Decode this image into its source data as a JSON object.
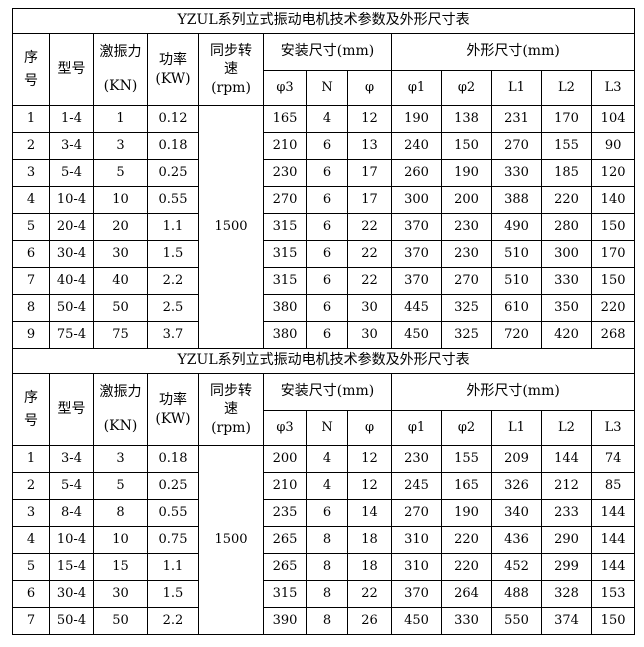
{
  "page": {
    "background": "#ffffff",
    "border_color": "#000000",
    "text_color": "#000000"
  },
  "tables": [
    {
      "title": "YZUL系列立式振动电机技术参数及外形尺寸表",
      "headers": {
        "seq": "序号",
        "model": "型号",
        "excitation_label": "激振力",
        "excitation_unit": "(KN)",
        "power_label": "功率",
        "power_unit": "(KW)",
        "sync_speed": "同步转速(rpm)",
        "install_group": "安装尺寸(mm)",
        "outline_group": "外形尺寸(mm)",
        "sub": [
          "φ3",
          "N",
          "φ",
          "φ1",
          "φ2",
          "L1",
          "L2",
          "L3"
        ]
      },
      "sync_speed_value": "1500",
      "rows": [
        [
          "1",
          "1-4",
          "1",
          "0.12",
          "165",
          "4",
          "12",
          "190",
          "138",
          "231",
          "170",
          "104"
        ],
        [
          "2",
          "3-4",
          "3",
          "0.18",
          "210",
          "6",
          "13",
          "240",
          "150",
          "270",
          "155",
          "90"
        ],
        [
          "3",
          "5-4",
          "5",
          "0.25",
          "230",
          "6",
          "17",
          "260",
          "190",
          "330",
          "185",
          "120"
        ],
        [
          "4",
          "10-4",
          "10",
          "0.55",
          "270",
          "6",
          "17",
          "300",
          "200",
          "388",
          "220",
          "140"
        ],
        [
          "5",
          "20-4",
          "20",
          "1.1",
          "315",
          "6",
          "22",
          "370",
          "230",
          "490",
          "280",
          "150"
        ],
        [
          "6",
          "30-4",
          "30",
          "1.5",
          "315",
          "6",
          "22",
          "370",
          "230",
          "510",
          "300",
          "170"
        ],
        [
          "7",
          "40-4",
          "40",
          "2.2",
          "315",
          "6",
          "22",
          "370",
          "270",
          "510",
          "330",
          "150"
        ],
        [
          "8",
          "50-4",
          "50",
          "2.5",
          "380",
          "6",
          "30",
          "445",
          "325",
          "610",
          "350",
          "220"
        ],
        [
          "9",
          "75-4",
          "75",
          "3.7",
          "380",
          "6",
          "30",
          "450",
          "325",
          "720",
          "420",
          "268"
        ]
      ]
    },
    {
      "title": "YZUL系列立式振动电机技术参数及外形尺寸表",
      "headers": {
        "seq": "序号",
        "model": "型号",
        "excitation_label": "激振力",
        "excitation_unit": "(KN)",
        "power_label": "功率",
        "power_unit": "(KW)",
        "sync_speed": "同步转速(rpm)",
        "install_group": "安装尺寸(mm)",
        "outline_group": "外形尺寸(mm)",
        "sub": [
          "φ3",
          "N",
          "φ",
          "φ1",
          "φ2",
          "L1",
          "L2",
          "L3"
        ]
      },
      "sync_speed_value": "1500",
      "rows": [
        [
          "1",
          "3-4",
          "3",
          "0.18",
          "200",
          "4",
          "12",
          "230",
          "155",
          "209",
          "144",
          "74"
        ],
        [
          "2",
          "5-4",
          "5",
          "0.25",
          "210",
          "4",
          "12",
          "245",
          "165",
          "326",
          "212",
          "85"
        ],
        [
          "3",
          "8-4",
          "8",
          "0.55",
          "235",
          "6",
          "14",
          "270",
          "190",
          "340",
          "233",
          "144"
        ],
        [
          "4",
          "10-4",
          "10",
          "0.75",
          "265",
          "8",
          "18",
          "310",
          "220",
          "436",
          "290",
          "144"
        ],
        [
          "5",
          "15-4",
          "15",
          "1.1",
          "265",
          "8",
          "18",
          "310",
          "220",
          "452",
          "299",
          "144"
        ],
        [
          "6",
          "30-4",
          "30",
          "1.5",
          "315",
          "8",
          "22",
          "370",
          "264",
          "488",
          "328",
          "153"
        ],
        [
          "7",
          "50-4",
          "50",
          "2.2",
          "390",
          "8",
          "26",
          "450",
          "330",
          "550",
          "374",
          "150"
        ]
      ]
    }
  ]
}
